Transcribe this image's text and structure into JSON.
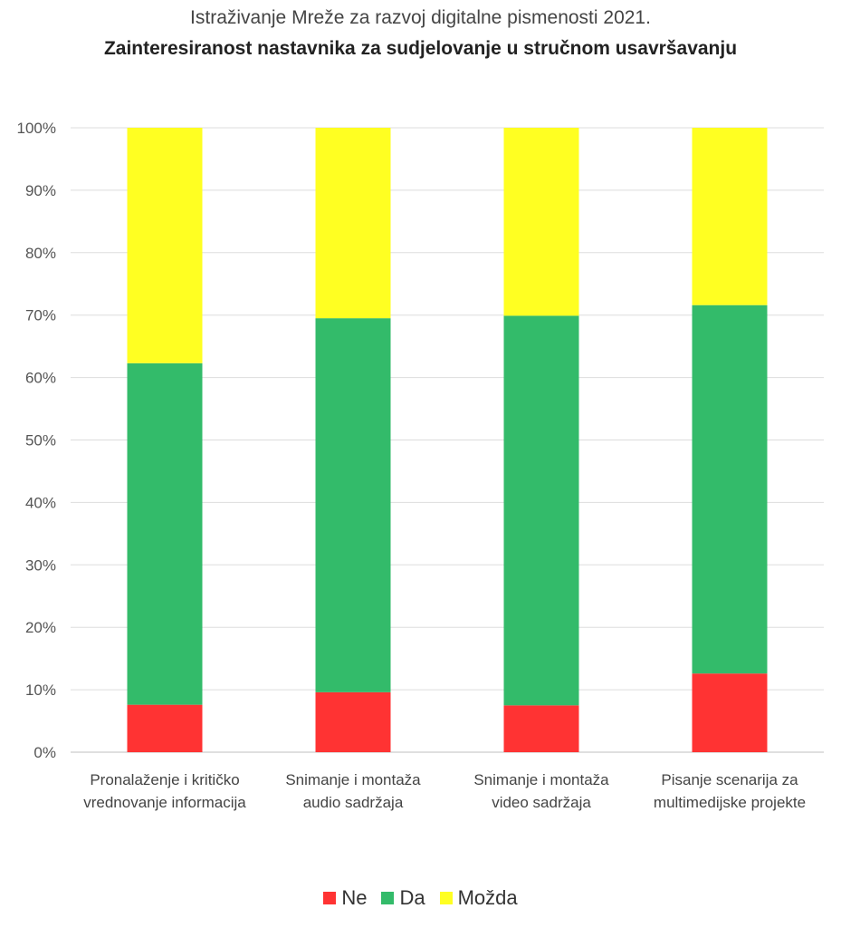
{
  "chart_data": {
    "type": "bar",
    "stacked": true,
    "title": "Istraživanje Mreže za razvoj digitalne pismenosti 2021.",
    "subtitle": "Zainteresiranost nastavnika za sudjelovanje u stručnom usavršavanju",
    "xlabel": "",
    "ylabel": "",
    "ylim": [
      0,
      100
    ],
    "yticks": [
      "0%",
      "10%",
      "20%",
      "30%",
      "40%",
      "50%",
      "60%",
      "70%",
      "80%",
      "90%",
      "100%"
    ],
    "grid": true,
    "legend_position": "bottom",
    "categories": [
      [
        "Pronalaženje i kritičko",
        "vrednovanje informacija"
      ],
      [
        "Snimanje i montaža",
        "audio sadržaja"
      ],
      [
        "Snimanje i montaža",
        "video sadržaja"
      ],
      [
        "Pisanje scenarija za",
        "multimedijske projekte"
      ]
    ],
    "series": [
      {
        "name": "Ne",
        "color": "#ff3333",
        "values": [
          7.6,
          9.6,
          7.5,
          12.6
        ]
      },
      {
        "name": "Da",
        "color": "#33bb6a",
        "values": [
          54.7,
          59.9,
          62.4,
          59.0
        ]
      },
      {
        "name": "Možda",
        "color": "#ffff22",
        "values": [
          37.7,
          30.5,
          30.1,
          28.4
        ]
      }
    ]
  }
}
